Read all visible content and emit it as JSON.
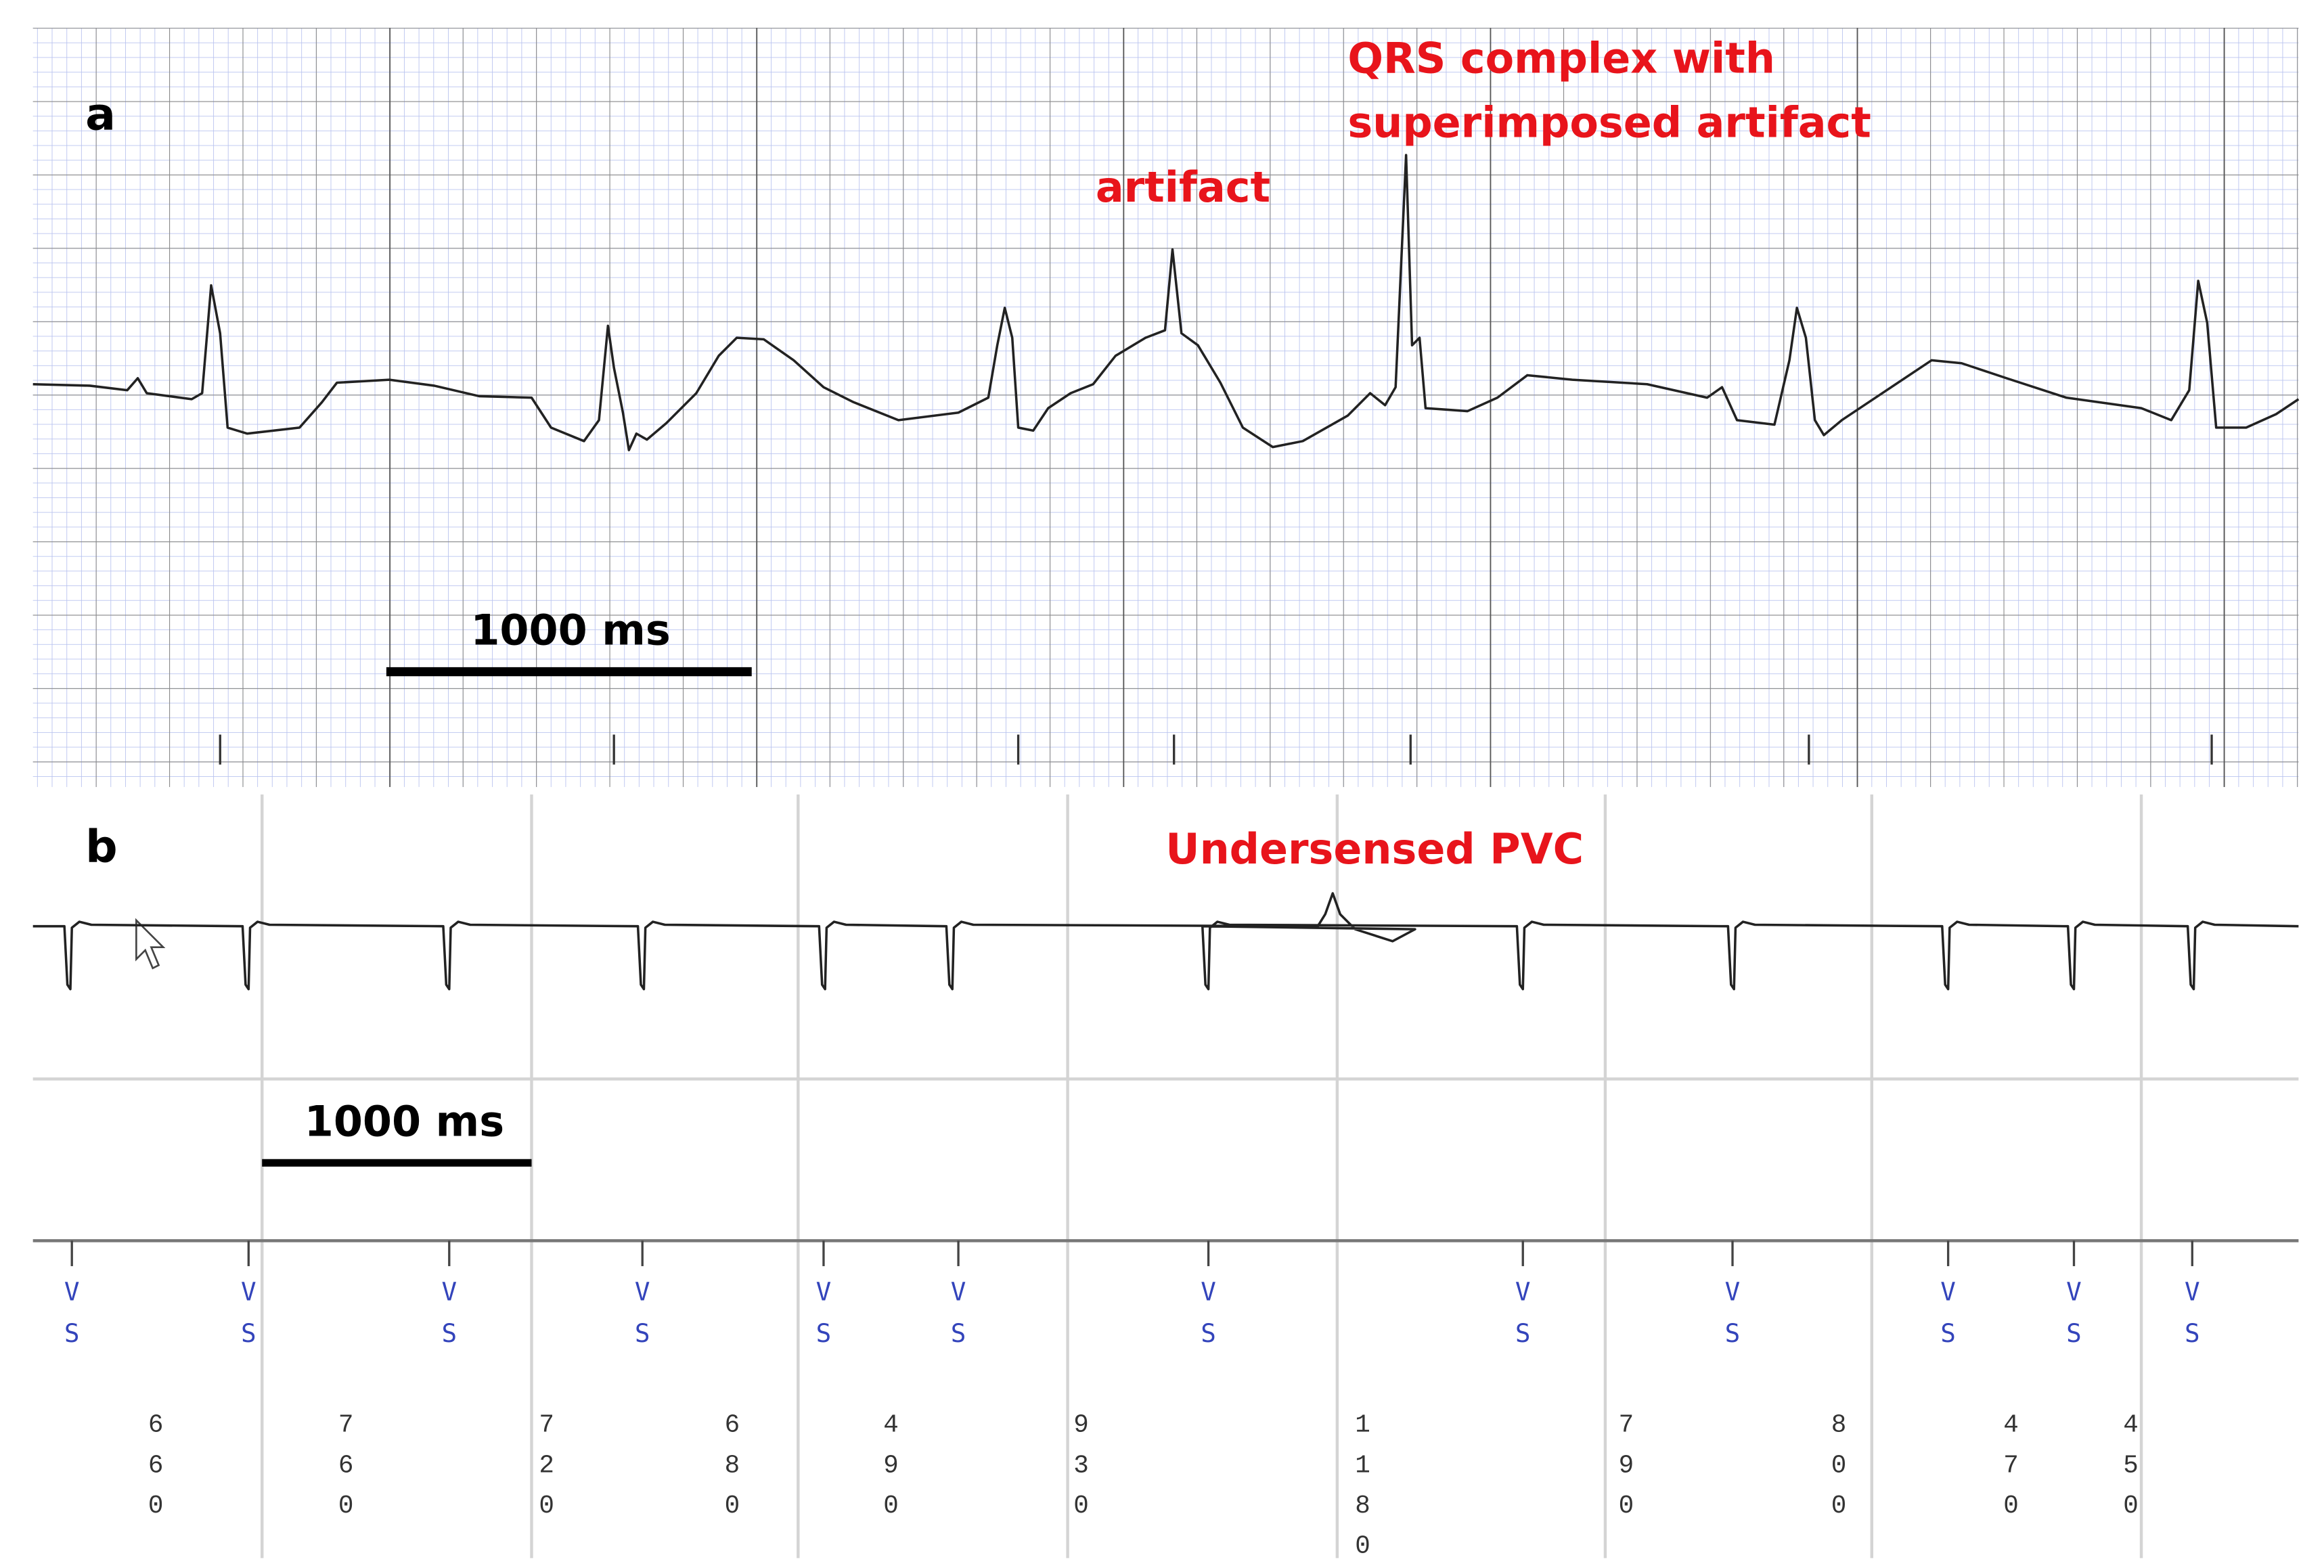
{
  "panel_a": {
    "label": "a",
    "artifact_annotation": "artifact",
    "qrs_annotation": [
      "QRS complex with",
      "superimposed artifact"
    ],
    "scale_bar": "1000 ms"
  },
  "panel_b": {
    "label": "b",
    "annotation": "Undersensed PVC",
    "scale_bar": "1000 ms",
    "markers": [
      "VS",
      "VS",
      "VS",
      "VS",
      "VS",
      "VS",
      "VS",
      "VS",
      "VS",
      "VS",
      "VS",
      "VS"
    ],
    "intervals": [
      660,
      760,
      720,
      680,
      490,
      930,
      1180,
      790,
      800,
      470,
      450
    ]
  }
}
